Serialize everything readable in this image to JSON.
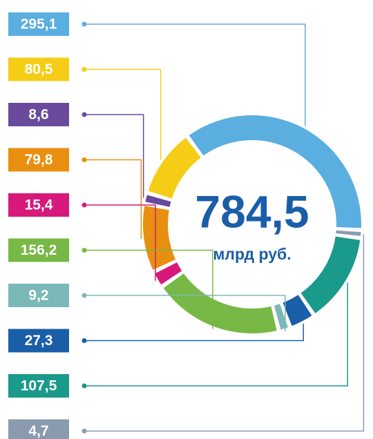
{
  "chart_data": {
    "type": "donut",
    "center_label": "784,5",
    "center_unit": "млрд руб.",
    "values": [
      295.1,
      80.5,
      8.6,
      79.8,
      15.4,
      156.2,
      9.2,
      27.3,
      107.5,
      4.7
    ],
    "value_labels": [
      "295,1",
      "80,5",
      "8,6",
      "79,8",
      "15,4",
      "156,2",
      "9,2",
      "27,3",
      "107,5",
      "4,7"
    ],
    "colors": [
      "#5aaee0",
      "#f6cd16",
      "#6a4a9c",
      "#e98f0f",
      "#d6197a",
      "#78b846",
      "#7bb8b8",
      "#1a5ea8",
      "#1a9a8a",
      "#8a9bb0"
    ]
  }
}
